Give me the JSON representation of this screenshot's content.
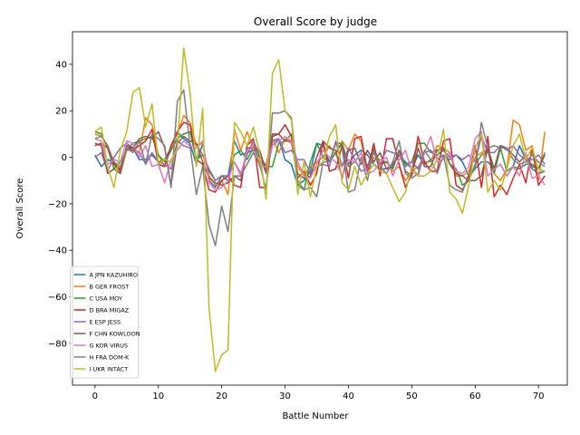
{
  "chart_data": {
    "type": "line",
    "title": "Overall Score by judge",
    "xlabel": "Battle Number",
    "ylabel": "Overall Score",
    "xlim": [
      -3.55,
      74.55
    ],
    "ylim": [
      -98,
      54
    ],
    "xticks": [
      0,
      10,
      20,
      30,
      40,
      50,
      60,
      70
    ],
    "yticks": [
      -80,
      -60,
      -40,
      -20,
      0,
      20,
      40
    ],
    "grid": false,
    "legend_position": "lower-left",
    "series": [
      {
        "name": "A JPN KAZUHIRO",
        "color": "#1f77b4",
        "values": [
          1,
          -4,
          -1,
          -2,
          -6,
          4,
          4,
          -1,
          -1,
          1,
          -2,
          -1,
          4,
          11,
          8,
          6,
          -3,
          6,
          -10,
          -13,
          -8,
          -8,
          7,
          1,
          2,
          3,
          0,
          -6,
          7,
          8,
          -1,
          -3,
          -12,
          -10,
          -6,
          6,
          5,
          -2,
          6,
          6,
          -3,
          1,
          3,
          1,
          -3,
          -5,
          -5,
          -3,
          1,
          -2,
          -5,
          1,
          -3,
          -1,
          1,
          3,
          0,
          1,
          -2,
          -8,
          -5,
          -2,
          -2,
          -5,
          -3,
          -8,
          -4,
          5,
          -1,
          -5,
          -7,
          -6
        ]
      },
      {
        "name": "B GER FROST",
        "color": "#ff7f0e",
        "values": [
          10,
          9,
          5,
          -3,
          -7,
          3,
          3,
          2,
          17,
          14,
          1,
          -4,
          4,
          10,
          18,
          15,
          5,
          6,
          -8,
          -12,
          -10,
          -16,
          12,
          3,
          11,
          4,
          -2,
          -3,
          8,
          2,
          8,
          6,
          -4,
          -8,
          -4,
          -2,
          0,
          5,
          1,
          7,
          3,
          10,
          7,
          -6,
          0,
          -1,
          -2,
          -6,
          -4,
          -10,
          -6,
          -4,
          -2,
          -2,
          5,
          4,
          2,
          -8,
          -8,
          -6,
          0,
          2,
          3,
          -7,
          -10,
          -5,
          16,
          14,
          3,
          5,
          -10,
          11
        ]
      },
      {
        "name": "C USA MOY",
        "color": "#2ca02c",
        "values": [
          11,
          10,
          4,
          -5,
          -2,
          3,
          6,
          7,
          8,
          9,
          1,
          -2,
          3,
          8,
          10,
          11,
          -1,
          1,
          -6,
          -10,
          -8,
          -10,
          1,
          3,
          -1,
          4,
          1,
          -4,
          -4,
          6,
          7,
          10,
          -12,
          -14,
          -2,
          6,
          0,
          -2,
          2,
          6,
          -4,
          -2,
          2,
          -4,
          4,
          -3,
          -2,
          -5,
          3,
          -3,
          -2,
          6,
          6,
          2,
          3,
          4,
          -3,
          -5,
          -12,
          -10,
          -3,
          1,
          3,
          -7,
          4,
          -6,
          -4,
          -5,
          -3,
          -3,
          -5,
          1
        ]
      },
      {
        "name": "D BRA MIGAZ",
        "color": "#d62728",
        "values": [
          5,
          6,
          4,
          -3,
          -5,
          4,
          3,
          5,
          7,
          12,
          -3,
          -4,
          5,
          11,
          15,
          14,
          -1,
          -3,
          -14,
          -15,
          -10,
          -8,
          -12,
          -13,
          5,
          8,
          -13,
          -13,
          9,
          10,
          14,
          9,
          -9,
          -6,
          -12,
          -7,
          7,
          -6,
          -5,
          5,
          -9,
          8,
          9,
          -6,
          6,
          -8,
          8,
          8,
          -3,
          -13,
          -7,
          9,
          -2,
          -6,
          -6,
          7,
          8,
          -12,
          -14,
          -9,
          5,
          -13,
          9,
          -17,
          -12,
          -16,
          -9,
          -3,
          -11,
          4,
          -12,
          -8
        ]
      },
      {
        "name": "E ESP JESS",
        "color": "#9467bd",
        "values": [
          0,
          2,
          -6,
          0,
          4,
          6,
          4,
          2,
          -3,
          2,
          -2,
          -3,
          -5,
          7,
          5,
          4,
          6,
          1,
          -5,
          -10,
          -8,
          -8,
          -2,
          -7,
          1,
          7,
          1,
          -7,
          5,
          8,
          2,
          3,
          -1,
          -1,
          -7,
          -4,
          -3,
          -4,
          7,
          -4,
          4,
          -1,
          -6,
          -5,
          2,
          -3,
          3,
          2,
          1,
          -4,
          -2,
          -5,
          2,
          3,
          -1,
          1,
          -1,
          1,
          -1,
          1,
          -2,
          9,
          2,
          2,
          5,
          3,
          5,
          1,
          -1,
          -1,
          1,
          -3
        ]
      },
      {
        "name": "F CHN KOWLOON",
        "color": "#8c564b",
        "values": [
          6,
          5,
          -7,
          -5,
          -7,
          5,
          4,
          8,
          9,
          8,
          11,
          4,
          -12,
          6,
          9,
          7,
          6,
          -2,
          -9,
          -11,
          -12,
          -11,
          -8,
          -10,
          4,
          4,
          3,
          -6,
          10,
          10,
          7,
          7,
          -7,
          -9,
          -8,
          0,
          7,
          4,
          3,
          -9,
          3,
          4,
          -3,
          3,
          -2,
          2,
          -5,
          -4,
          3,
          -6,
          -8,
          4,
          -4,
          -4,
          3,
          4,
          -3,
          -7,
          -8,
          -10,
          -10,
          -8,
          4,
          -5,
          5,
          4,
          1,
          -2,
          1,
          -4,
          -5,
          2
        ]
      },
      {
        "name": "G KOR VIRUS",
        "color": "#e377c2",
        "values": [
          8,
          7,
          -3,
          -1,
          -2,
          7,
          6,
          0,
          5,
          -4,
          -3,
          -11,
          -1,
          3,
          7,
          5,
          4,
          7,
          -11,
          -14,
          -13,
          -10,
          -2,
          -8,
          3,
          4,
          -4,
          -4,
          5,
          7,
          9,
          7,
          -2,
          -8,
          -9,
          -3,
          3,
          0,
          -2,
          -8,
          -1,
          -2,
          2,
          -7,
          -6,
          -2,
          0,
          -8,
          -1,
          3,
          -6,
          -8,
          2,
          9,
          -2,
          -1,
          2,
          -6,
          -7,
          -4,
          8,
          11,
          -8,
          -5,
          -3,
          -8,
          -4,
          -8,
          2,
          -9,
          -8,
          -12
        ]
      },
      {
        "name": "H FRA DOM-K",
        "color": "#7f7f7f",
        "values": [
          8,
          9,
          5,
          -2,
          -4,
          4,
          2,
          7,
          -3,
          10,
          8,
          5,
          -13,
          24,
          29,
          5,
          -16,
          -4,
          -29,
          -38,
          -21,
          -32,
          -8,
          -8,
          -3,
          2,
          -3,
          -14,
          19,
          19,
          20,
          17,
          -10,
          -14,
          -13,
          -17,
          -2,
          -2,
          6,
          4,
          -15,
          -14,
          0,
          -10,
          3,
          -4,
          -7,
          -2,
          7,
          -7,
          -9,
          -7,
          3,
          -1,
          -7,
          1,
          -12,
          -14,
          -15,
          -7,
          -5,
          15,
          4,
          5,
          4,
          4,
          -1,
          -3,
          -2,
          1,
          -2,
          -4
        ]
      },
      {
        "name": "I UKR INTACT",
        "color": "#bcbd22",
        "values": [
          11,
          13,
          -4,
          -13,
          3,
          11,
          28,
          30,
          13,
          23,
          -3,
          -1,
          -2,
          4,
          47,
          28,
          -4,
          21,
          -65,
          -92,
          -85,
          -83,
          15,
          11,
          5,
          13,
          2,
          -18,
          36,
          42,
          20,
          16,
          -16,
          -2,
          -17,
          -4,
          -2,
          9,
          14,
          -11,
          -14,
          -4,
          -12,
          -7,
          -3,
          -6,
          -7,
          -13,
          -19,
          -15,
          -4,
          -8,
          -8,
          -6,
          -1,
          12,
          -15,
          -18,
          -24,
          -12,
          4,
          10,
          -15,
          -10,
          -14,
          -5,
          5,
          10,
          -1,
          4,
          -5,
          -6
        ]
      }
    ]
  }
}
